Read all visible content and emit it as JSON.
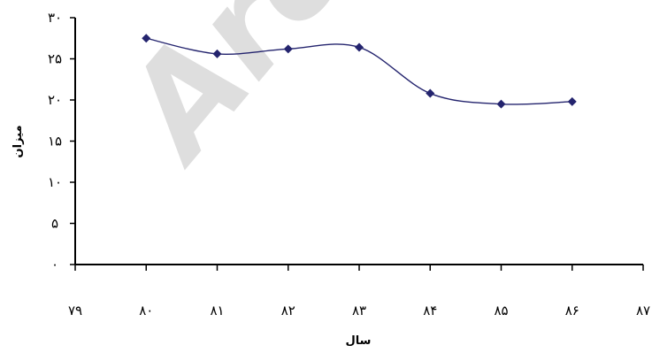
{
  "chart_data": {
    "type": "line",
    "x": [
      80,
      81,
      82,
      83,
      84,
      85,
      86
    ],
    "series": [
      {
        "values": [
          27.5,
          25.6,
          26.2,
          26.4,
          20.8,
          19.5,
          19.8
        ],
        "color": "#24246e"
      }
    ],
    "xlim": [
      79,
      87
    ],
    "ylim": [
      0,
      30
    ],
    "x_tick_labels": [
      "۷۹",
      "۸۰",
      "۸۱",
      "۸۲",
      "۸۳",
      "۸۴",
      "۸۵",
      "۸۶",
      "۸۷"
    ],
    "y_tick_labels": [
      "۰",
      "۵",
      "۱۰",
      "۱۵",
      "۲۰",
      "۲۵",
      "۳۰"
    ],
    "xlabel": "سال",
    "ylabel": "میزان",
    "title": "",
    "grid": false,
    "legend": "none",
    "smooth": true,
    "marker": "diamond",
    "watermark_text": "Arc",
    "watermark_color": "#d8d8d8"
  }
}
